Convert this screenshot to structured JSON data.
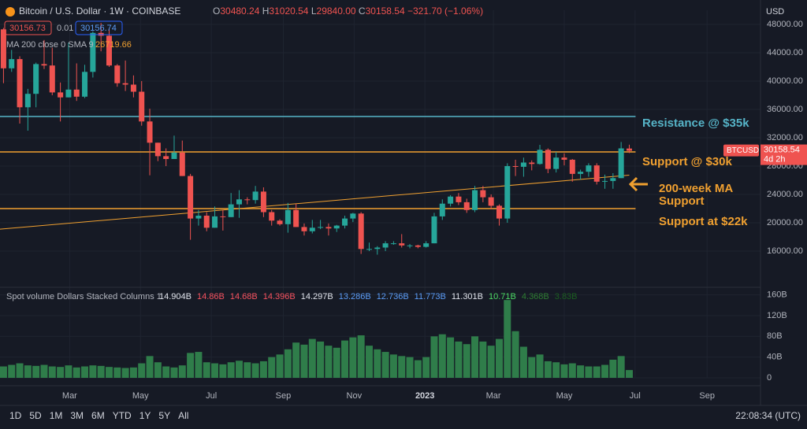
{
  "header": {
    "symbol": "Bitcoin / U.S. Dollar · 1W · COINBASE",
    "ohlc": [
      "O",
      "30480.24",
      "H",
      "31020.54",
      "L",
      "29840.00",
      "C",
      "30158.54",
      "−321.70 (−1.06%)"
    ],
    "sell": "30156.73",
    "spread": "0.01",
    "buy": "30156.74",
    "currency": "USD"
  },
  "chart_data": {
    "type": "candlestick",
    "up_color": "#26a69a",
    "down_color": "#ef5350",
    "x": [
      "2022-01-03",
      "2022-01-10",
      "2022-01-17",
      "2022-01-24",
      "2022-01-31",
      "2022-02-07",
      "2022-02-14",
      "2022-02-21",
      "2022-02-28",
      "2022-03-07",
      "2022-03-14",
      "2022-03-21",
      "2022-03-28",
      "2022-04-04",
      "2022-04-11",
      "2022-04-18",
      "2022-04-25",
      "2022-05-02",
      "2022-05-09",
      "2022-05-16",
      "2022-05-23",
      "2022-05-30",
      "2022-06-06",
      "2022-06-13",
      "2022-06-20",
      "2022-06-27",
      "2022-07-04",
      "2022-07-11",
      "2022-07-18",
      "2022-07-25",
      "2022-08-01",
      "2022-08-08",
      "2022-08-15",
      "2022-08-22",
      "2022-08-29",
      "2022-09-05",
      "2022-09-12",
      "2022-09-19",
      "2022-09-26",
      "2022-10-03",
      "2022-10-10",
      "2022-10-17",
      "2022-10-24",
      "2022-10-31",
      "2022-11-07",
      "2022-11-14",
      "2022-11-21",
      "2022-11-28",
      "2022-12-05",
      "2022-12-12",
      "2022-12-19",
      "2022-12-26",
      "2023-01-02",
      "2023-01-09",
      "2023-01-16",
      "2023-01-23",
      "2023-01-30",
      "2023-02-06",
      "2023-02-13",
      "2023-02-20",
      "2023-02-27",
      "2023-03-06",
      "2023-03-13",
      "2023-03-20",
      "2023-03-27",
      "2023-04-03",
      "2023-04-10",
      "2023-04-17",
      "2023-04-24",
      "2023-05-01",
      "2023-05-08",
      "2023-05-15",
      "2023-05-22",
      "2023-05-29",
      "2023-06-05",
      "2023-06-12",
      "2023-06-19",
      "2023-06-26"
    ],
    "candles": [
      [
        47300,
        47500,
        39700,
        41800
      ],
      [
        41800,
        44400,
        41300,
        43100
      ],
      [
        43100,
        43500,
        34000,
        36300
      ],
      [
        36300,
        38900,
        33000,
        38200
      ],
      [
        38200,
        42600,
        36300,
        42400
      ],
      [
        42400,
        45800,
        41700,
        42200
      ],
      [
        42200,
        44700,
        38000,
        38400
      ],
      [
        38400,
        39800,
        34300,
        37700
      ],
      [
        37700,
        45400,
        37700,
        38800
      ],
      [
        38800,
        42500,
        37200,
        37800
      ],
      [
        37800,
        42300,
        37600,
        41300
      ],
      [
        41300,
        47000,
        40500,
        46800
      ],
      [
        46800,
        48200,
        44200,
        46400
      ],
      [
        46400,
        47400,
        42000,
        42200
      ],
      [
        42200,
        42400,
        39200,
        39700
      ],
      [
        39700,
        42900,
        38600,
        39500
      ],
      [
        39500,
        40800,
        37700,
        38500
      ],
      [
        38500,
        40000,
        33700,
        34300
      ],
      [
        34300,
        36100,
        26700,
        31300
      ],
      [
        31300,
        31300,
        28700,
        29400
      ],
      [
        29400,
        30500,
        28000,
        29000
      ],
      [
        29000,
        32300,
        29000,
        29900
      ],
      [
        29900,
        31600,
        26600,
        26600
      ],
      [
        26600,
        26900,
        17600,
        20600
      ],
      [
        20600,
        21800,
        19600,
        21000
      ],
      [
        21000,
        21500,
        18800,
        19300
      ],
      [
        19300,
        22300,
        19300,
        20900
      ],
      [
        20900,
        21800,
        18900,
        20800
      ],
      [
        20800,
        24200,
        20800,
        22600
      ],
      [
        22600,
        24600,
        20700,
        23300
      ],
      [
        23300,
        23600,
        22600,
        23200
      ],
      [
        23200,
        25200,
        22700,
        24400
      ],
      [
        24400,
        25000,
        20800,
        21500
      ],
      [
        21500,
        21800,
        19600,
        20300
      ],
      [
        20300,
        20500,
        19600,
        19800
      ],
      [
        19800,
        22800,
        18600,
        21800
      ],
      [
        21800,
        22700,
        19400,
        19400
      ],
      [
        19400,
        19900,
        18200,
        18800
      ],
      [
        18800,
        20400,
        18500,
        19300
      ],
      [
        19300,
        20400,
        19100,
        19400
      ],
      [
        19400,
        19900,
        18200,
        19200
      ],
      [
        19200,
        19700,
        18700,
        19600
      ],
      [
        19600,
        21000,
        19200,
        20600
      ],
      [
        20600,
        21400,
        20100,
        21300
      ],
      [
        21300,
        21500,
        15600,
        16300
      ],
      [
        16300,
        17200,
        16000,
        16300
      ],
      [
        16300,
        16700,
        15500,
        16500
      ],
      [
        16500,
        17400,
        16000,
        17100
      ],
      [
        17100,
        17400,
        16900,
        17100
      ],
      [
        17100,
        18400,
        16500,
        16800
      ],
      [
        16800,
        17000,
        16400,
        16800
      ],
      [
        16800,
        16900,
        16400,
        16600
      ],
      [
        16600,
        17400,
        16500,
        17100
      ],
      [
        17100,
        21400,
        17100,
        20900
      ],
      [
        20900,
        23300,
        20400,
        22700
      ],
      [
        22700,
        23900,
        22300,
        23700
      ],
      [
        23700,
        24200,
        22500,
        22900
      ],
      [
        22900,
        23400,
        21400,
        21800
      ],
      [
        21800,
        25200,
        21500,
        24600
      ],
      [
        24600,
        25200,
        22900,
        23600
      ],
      [
        23600,
        24000,
        21900,
        22400
      ],
      [
        22400,
        22600,
        19600,
        20600
      ],
      [
        20600,
        28400,
        20000,
        28000
      ],
      [
        28000,
        28900,
        26600,
        27900
      ],
      [
        27900,
        29200,
        26500,
        28500
      ],
      [
        28500,
        28800,
        27400,
        28300
      ],
      [
        28300,
        31000,
        28200,
        30300
      ],
      [
        30300,
        30500,
        27000,
        27600
      ],
      [
        27600,
        30000,
        27100,
        29200
      ],
      [
        29200,
        29800,
        28100,
        28900
      ],
      [
        28900,
        29000,
        25800,
        26900
      ],
      [
        26900,
        27500,
        26100,
        27200
      ],
      [
        27200,
        28400,
        26500,
        28100
      ],
      [
        28100,
        28400,
        25400,
        25800
      ],
      [
        25800,
        26800,
        24800,
        25900
      ],
      [
        25900,
        27000,
        24800,
        26300
      ],
      [
        26300,
        31400,
        26300,
        30500
      ],
      [
        30480.24,
        31020.54,
        29840,
        30158.54
      ]
    ],
    "xlim": [
      "2021-12-31",
      "2023-10-15"
    ],
    "xticks": [
      {
        "value": "2022-03-01",
        "label": "Mar"
      },
      {
        "value": "2022-05-01",
        "label": "May"
      },
      {
        "value": "2022-07-01",
        "label": "Jul"
      },
      {
        "value": "2022-09-01",
        "label": "Sep"
      },
      {
        "value": "2022-11-01",
        "label": "Nov"
      },
      {
        "value": "2023-01-01",
        "label": "2023"
      },
      {
        "value": "2023-03-01",
        "label": "Mar"
      },
      {
        "value": "2023-05-01",
        "label": "May"
      },
      {
        "value": "2023-07-01",
        "label": "Jul"
      },
      {
        "value": "2023-09-01",
        "label": "Sep"
      }
    ],
    "ylim": [
      13000,
      50000
    ],
    "yticks": [
      {
        "value": 16000,
        "label": "16000.00"
      },
      {
        "value": 20000,
        "label": "20000.00"
      },
      {
        "value": 24000,
        "label": "24000.00"
      },
      {
        "value": 28000,
        "label": "28000.00"
      },
      {
        "value": 32000,
        "label": "32000.00"
      },
      {
        "value": 36000,
        "label": "36000.00"
      },
      {
        "value": 40000,
        "label": "40000.00"
      },
      {
        "value": 44000,
        "label": "44000.00"
      },
      {
        "value": 48000,
        "label": "48000.00"
      }
    ],
    "last_price": {
      "symbol": "BTCUSD",
      "label": "30158.54",
      "countdown": "4d 2h"
    },
    "ma": {
      "label": "MA 200 close 0 SMA 9",
      "value_label": "26719.66",
      "color": "#f0a030",
      "x": [
        "2021-12-31",
        "2023-06-26"
      ],
      "values": [
        19100,
        26719.66
      ]
    },
    "levels": [
      {
        "value": 35000,
        "color": "#56b4c8"
      },
      {
        "value": 30000,
        "color": "#f0a030"
      },
      {
        "value": 22000,
        "color": "#f0a030"
      }
    ],
    "annotations": [
      {
        "text": "Resistance @ $35k",
        "color": "#56b4c8"
      },
      {
        "text": "Support @ $30k",
        "color": "#f0a030"
      },
      {
        "text": "200-week MA",
        "color": "#f0a030"
      },
      {
        "text": "Support",
        "color": "#f0a030"
      },
      {
        "text": "Support at $22k",
        "color": "#f0a030"
      }
    ],
    "volume": {
      "title": "Spot volume Dollars Stacked Columns 1",
      "color": "#2f7d4a",
      "values": [
        22,
        25,
        28,
        24,
        23,
        25,
        22,
        21,
        24,
        20,
        22,
        24,
        23,
        21,
        20,
        19,
        20,
        28,
        42,
        30,
        22,
        20,
        24,
        48,
        50,
        30,
        28,
        26,
        30,
        33,
        30,
        28,
        32,
        40,
        45,
        55,
        68,
        64,
        75,
        70,
        62,
        58,
        72,
        78,
        82,
        62,
        55,
        50,
        45,
        42,
        40,
        34,
        40,
        80,
        84,
        78,
        70,
        65,
        80,
        70,
        62,
        75,
        150,
        90,
        60,
        40,
        45,
        32,
        30,
        26,
        28,
        24,
        22,
        22,
        25,
        35,
        42,
        15
      ],
      "ylim": [
        0,
        170
      ],
      "yticks": [
        0,
        {
          "value": 40,
          "label": "40B"
        },
        {
          "value": 80,
          "label": "80B"
        },
        {
          "value": 120,
          "label": "120B"
        },
        {
          "value": 160,
          "label": "160B"
        }
      ],
      "legend": [
        {
          "text": "14.904B",
          "color": "#e0e3eb"
        },
        {
          "text": "14.86B",
          "color": "#f7525f"
        },
        {
          "text": "14.68B",
          "color": "#f7525f"
        },
        {
          "text": "14.396B",
          "color": "#f7525f"
        },
        {
          "text": "14.297B",
          "color": "#e0e3eb"
        },
        {
          "text": "13.286B",
          "color": "#5b9cf6"
        },
        {
          "text": "12.736B",
          "color": "#5b9cf6"
        },
        {
          "text": "11.773B",
          "color": "#5b9cf6"
        },
        {
          "text": "11.301B",
          "color": "#e0e3eb"
        },
        {
          "text": "10.71B",
          "color": "#4cd964"
        },
        {
          "text": "4.368B",
          "color": "#2e7d32"
        },
        {
          "text": "3.83B",
          "color": "#1b5e20"
        }
      ]
    }
  },
  "footer": {
    "ranges": [
      "1D",
      "5D",
      "1M",
      "3M",
      "6M",
      "YTD",
      "1Y",
      "5Y",
      "All"
    ],
    "clock": "22:08:34 (UTC)"
  }
}
